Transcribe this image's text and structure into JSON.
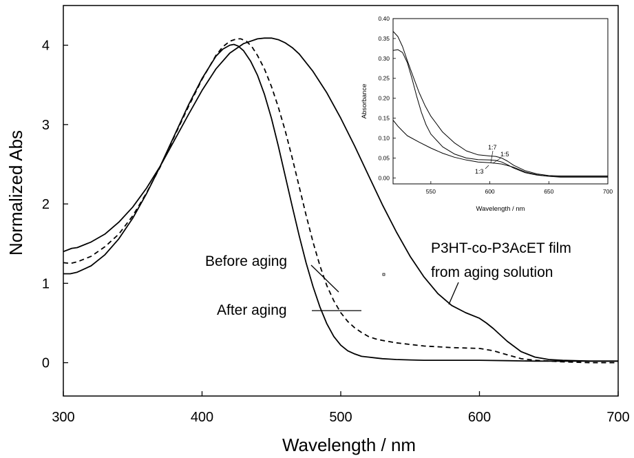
{
  "chart_data": [
    {
      "type": "line",
      "title": "",
      "xlabel": "Wavelength / nm",
      "ylabel": "Normalized Abs",
      "xlim": [
        300,
        700
      ],
      "ylim": [
        -0.42,
        4.5
      ],
      "xticks": [
        300,
        400,
        500,
        600,
        700
      ],
      "yticks": [
        0,
        1,
        2,
        3,
        4
      ],
      "grid": false,
      "series": [
        {
          "name": "Before aging",
          "style": "solid",
          "x": [
            300,
            305,
            310,
            320,
            330,
            340,
            350,
            360,
            370,
            380,
            390,
            400,
            410,
            415,
            420,
            423,
            426,
            430,
            435,
            440,
            445,
            450,
            455,
            460,
            465,
            470,
            475,
            480,
            485,
            490,
            495,
            500,
            505,
            510,
            515,
            520,
            525,
            530,
            535,
            540,
            550,
            560,
            580,
            600,
            620,
            640,
            660,
            680,
            700
          ],
          "y": [
            1.12,
            1.12,
            1.14,
            1.22,
            1.36,
            1.56,
            1.82,
            2.13,
            2.48,
            2.86,
            3.24,
            3.58,
            3.86,
            3.95,
            4.0,
            4.01,
            3.99,
            3.93,
            3.8,
            3.62,
            3.38,
            3.08,
            2.73,
            2.35,
            1.97,
            1.6,
            1.26,
            0.96,
            0.7,
            0.49,
            0.33,
            0.22,
            0.15,
            0.11,
            0.08,
            0.07,
            0.06,
            0.05,
            0.045,
            0.04,
            0.035,
            0.03,
            0.03,
            0.03,
            0.025,
            0.02,
            0.02,
            0.02,
            0.02
          ]
        },
        {
          "name": "After aging",
          "style": "dashed",
          "x": [
            300,
            305,
            310,
            320,
            330,
            340,
            350,
            360,
            370,
            380,
            390,
            400,
            410,
            415,
            420,
            425,
            428,
            432,
            436,
            440,
            445,
            450,
            455,
            460,
            465,
            470,
            475,
            480,
            485,
            490,
            495,
            500,
            505,
            510,
            515,
            520,
            525,
            530,
            540,
            550,
            560,
            570,
            580,
            590,
            600,
            610,
            620,
            630,
            640,
            660,
            680,
            700
          ],
          "y": [
            1.26,
            1.25,
            1.27,
            1.34,
            1.46,
            1.62,
            1.85,
            2.14,
            2.47,
            2.85,
            3.22,
            3.57,
            3.87,
            3.98,
            4.05,
            4.08,
            4.08,
            4.05,
            3.98,
            3.87,
            3.7,
            3.48,
            3.22,
            2.92,
            2.58,
            2.22,
            1.86,
            1.52,
            1.22,
            0.97,
            0.78,
            0.63,
            0.52,
            0.44,
            0.38,
            0.33,
            0.3,
            0.28,
            0.25,
            0.23,
            0.21,
            0.2,
            0.19,
            0.185,
            0.18,
            0.15,
            0.1,
            0.05,
            0.03,
            0.01,
            0.0,
            0.0
          ]
        },
        {
          "name": "P3HT-co-P3AcET film from aging solution",
          "style": "solid",
          "x": [
            300,
            303,
            306,
            310,
            320,
            330,
            340,
            350,
            360,
            370,
            380,
            390,
            400,
            410,
            420,
            430,
            440,
            445,
            450,
            455,
            460,
            465,
            470,
            480,
            490,
            500,
            510,
            520,
            530,
            540,
            550,
            560,
            570,
            580,
            590,
            600,
            605,
            610,
            620,
            630,
            640,
            650,
            660,
            680,
            700
          ],
          "y": [
            1.4,
            1.42,
            1.44,
            1.45,
            1.52,
            1.62,
            1.77,
            1.96,
            2.2,
            2.48,
            2.8,
            3.12,
            3.43,
            3.7,
            3.9,
            4.02,
            4.08,
            4.09,
            4.09,
            4.07,
            4.03,
            3.97,
            3.89,
            3.67,
            3.4,
            3.08,
            2.73,
            2.36,
            1.99,
            1.65,
            1.34,
            1.08,
            0.87,
            0.72,
            0.63,
            0.56,
            0.5,
            0.43,
            0.27,
            0.14,
            0.07,
            0.04,
            0.03,
            0.02,
            0.02
          ]
        }
      ],
      "annotations": [
        "Before aging",
        "After aging",
        "P3HT-co-P3AcET film",
        "from aging solution"
      ]
    },
    {
      "type": "line",
      "title": "",
      "xlabel": "Wavelength / nm",
      "ylabel": "Absorbance",
      "xlim": [
        518,
        700
      ],
      "ylim": [
        -0.015,
        0.4
      ],
      "xticks": [
        550,
        600,
        650,
        700
      ],
      "yticks": [
        0.0,
        0.05,
        0.1,
        0.15,
        0.2,
        0.25,
        0.3,
        0.35,
        0.4
      ],
      "ytick_labels": [
        "0.00",
        "0.05",
        "0.10",
        "0.15",
        "0.20",
        "0.25",
        "0.30",
        "0.35",
        "0.40"
      ],
      "grid": false,
      "series": [
        {
          "name": "1:7",
          "x": [
            518,
            522,
            526,
            530,
            535,
            540,
            545,
            550,
            560,
            570,
            580,
            590,
            600,
            605,
            610,
            615,
            620,
            630,
            640,
            650,
            660,
            680,
            700
          ],
          "y": [
            0.368,
            0.355,
            0.33,
            0.295,
            0.255,
            0.215,
            0.182,
            0.155,
            0.115,
            0.088,
            0.068,
            0.058,
            0.055,
            0.054,
            0.05,
            0.042,
            0.032,
            0.018,
            0.01,
            0.006,
            0.005,
            0.005,
            0.005
          ]
        },
        {
          "name": "1:5",
          "x": [
            518,
            522,
            526,
            530,
            534,
            538,
            542,
            546,
            550,
            560,
            570,
            580,
            590,
            600,
            605,
            610,
            615,
            620,
            630,
            640,
            650,
            660,
            680,
            700
          ],
          "y": [
            0.32,
            0.322,
            0.315,
            0.29,
            0.25,
            0.205,
            0.165,
            0.133,
            0.11,
            0.078,
            0.06,
            0.05,
            0.046,
            0.045,
            0.044,
            0.04,
            0.033,
            0.025,
            0.013,
            0.007,
            0.004,
            0.003,
            0.003,
            0.003
          ]
        },
        {
          "name": "1:3",
          "x": [
            518,
            522,
            526,
            530,
            540,
            550,
            560,
            570,
            580,
            590,
            600,
            610,
            620,
            630,
            640,
            650,
            660,
            680,
            700
          ],
          "y": [
            0.145,
            0.13,
            0.118,
            0.106,
            0.09,
            0.075,
            0.062,
            0.052,
            0.045,
            0.04,
            0.038,
            0.035,
            0.027,
            0.015,
            0.008,
            0.004,
            0.002,
            0.002,
            0.002
          ]
        }
      ]
    }
  ]
}
